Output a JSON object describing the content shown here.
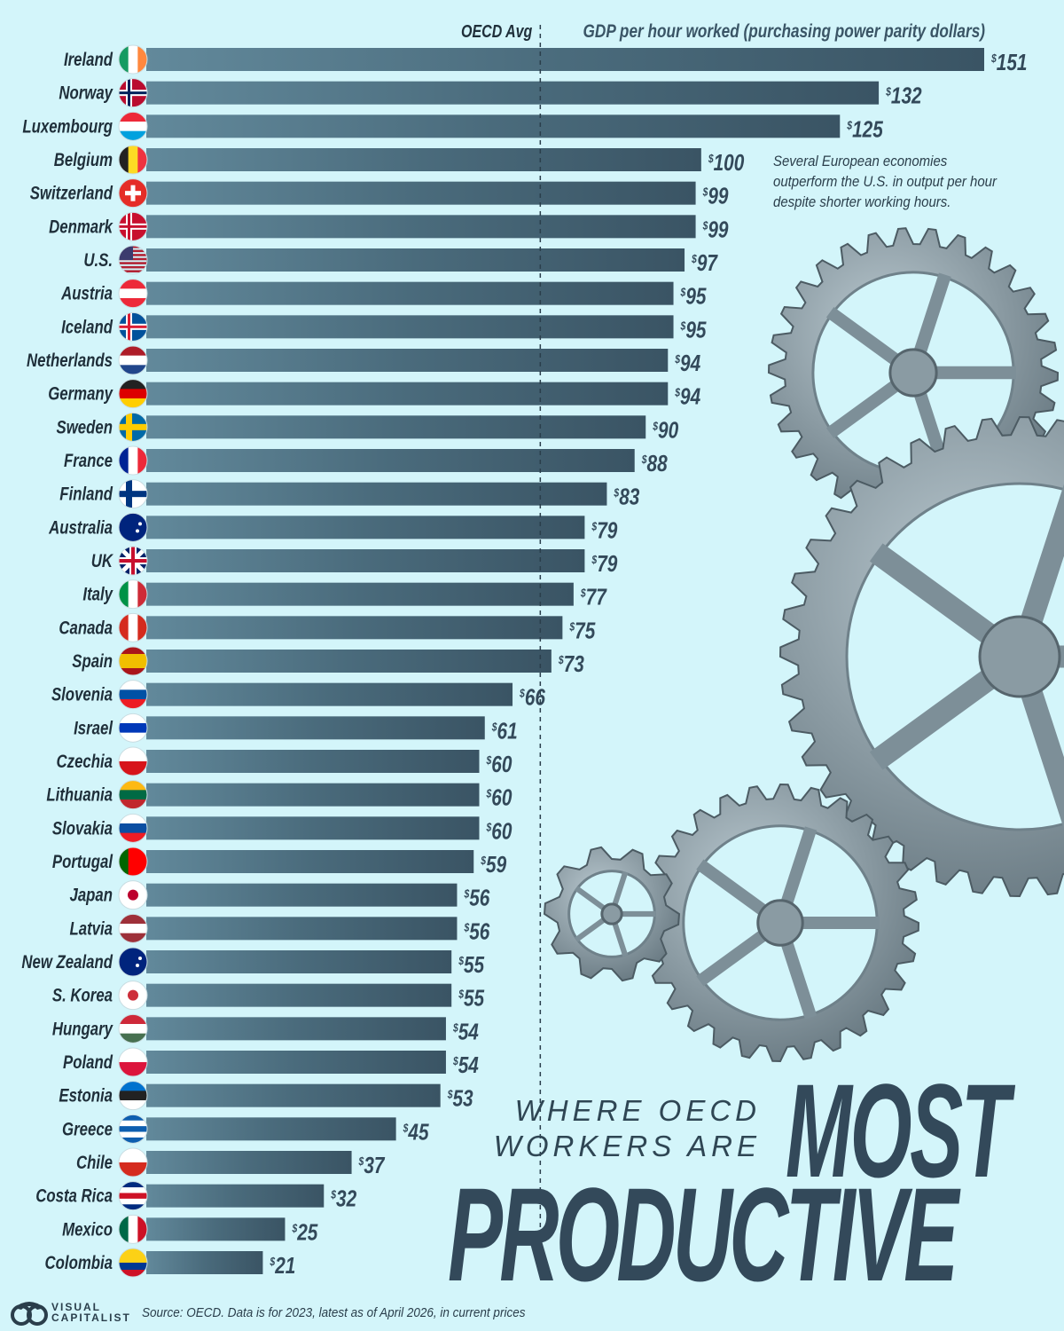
{
  "chart_data": {
    "type": "bar",
    "orientation": "horizontal",
    "title": "Where OECD Workers Are Most Productive",
    "xlabel": "GDP per hour worked (purchasing power parity dollars)",
    "value_prefix": "$",
    "xlim": [
      0,
      151
    ],
    "reference_line": {
      "label": "OECD Avg",
      "value": 71,
      "style": "dashed"
    },
    "categories": [
      "Ireland",
      "Norway",
      "Luxembourg",
      "Belgium",
      "Switzerland",
      "Denmark",
      "U.S.",
      "Austria",
      "Iceland",
      "Netherlands",
      "Germany",
      "Sweden",
      "France",
      "Finland",
      "Australia",
      "UK",
      "Italy",
      "Canada",
      "Spain",
      "Slovenia",
      "Israel",
      "Czechia",
      "Lithuania",
      "Slovakia",
      "Portugal",
      "Japan",
      "Latvia",
      "New Zealand",
      "S. Korea",
      "Hungary",
      "Poland",
      "Estonia",
      "Greece",
      "Chile",
      "Costa Rica",
      "Mexico",
      "Colombia"
    ],
    "values": [
      151,
      132,
      125,
      100,
      99,
      99,
      97,
      95,
      95,
      94,
      94,
      90,
      88,
      83,
      79,
      79,
      77,
      75,
      73,
      66,
      61,
      60,
      60,
      60,
      59,
      56,
      56,
      55,
      55,
      54,
      54,
      53,
      45,
      37,
      32,
      25,
      21
    ],
    "value_labels": [
      "151",
      "132",
      "125",
      "100",
      "99",
      "99",
      "97",
      "95",
      "95",
      "94",
      "94",
      "90",
      "88",
      "83",
      "79",
      "79",
      "77",
      "75",
      "73",
      "66",
      "61",
      "60",
      "60",
      "60",
      "59",
      "56",
      "56",
      "55",
      "55",
      "54",
      "54",
      "53",
      "45",
      "37",
      "32",
      "25",
      "21"
    ],
    "grid": false,
    "legend": "none"
  },
  "flags": [
    {
      "dir": "v",
      "colors": [
        "#169b62",
        "#ffffff",
        "#ff883e"
      ]
    },
    {
      "dir": "cross",
      "colors": [
        "#ba0c2f",
        "#ffffff",
        "#00205b"
      ]
    },
    {
      "dir": "h",
      "colors": [
        "#ed2939",
        "#ffffff",
        "#00a1de"
      ]
    },
    {
      "dir": "v",
      "colors": [
        "#222222",
        "#fdda24",
        "#ef3340"
      ]
    },
    {
      "dir": "swiss",
      "colors": [
        "#e52d27",
        "#ffffff"
      ]
    },
    {
      "dir": "cross",
      "colors": [
        "#c8102e",
        "#ffffff",
        "#c8102e"
      ]
    },
    {
      "dir": "us",
      "colors": [
        "#b22234",
        "#ffffff",
        "#3c3b6e"
      ]
    },
    {
      "dir": "h",
      "colors": [
        "#ed2939",
        "#ffffff",
        "#ed2939"
      ]
    },
    {
      "dir": "cross",
      "colors": [
        "#02529c",
        "#ffffff",
        "#dc1e35"
      ]
    },
    {
      "dir": "h",
      "colors": [
        "#ae1c28",
        "#ffffff",
        "#21468b"
      ]
    },
    {
      "dir": "h",
      "colors": [
        "#222222",
        "#dd0000",
        "#ffce00"
      ]
    },
    {
      "dir": "cross",
      "colors": [
        "#006aa7",
        "#fecc00",
        "#fecc00"
      ]
    },
    {
      "dir": "v",
      "colors": [
        "#002395",
        "#ffffff",
        "#ed2939"
      ]
    },
    {
      "dir": "cross",
      "colors": [
        "#ffffff",
        "#003580",
        "#003580"
      ]
    },
    {
      "dir": "solid",
      "colors": [
        "#00247d"
      ]
    },
    {
      "dir": "uk",
      "colors": [
        "#012169",
        "#ffffff",
        "#c8102e"
      ]
    },
    {
      "dir": "v",
      "colors": [
        "#009246",
        "#ffffff",
        "#ce2b37"
      ]
    },
    {
      "dir": "v",
      "colors": [
        "#d52b1e",
        "#ffffff",
        "#d52b1e"
      ]
    },
    {
      "dir": "h",
      "colors": [
        "#aa151b",
        "#f1bf00",
        "#f1bf00",
        "#aa151b"
      ]
    },
    {
      "dir": "h",
      "colors": [
        "#ffffff",
        "#0051a5",
        "#ed1c24"
      ]
    },
    {
      "dir": "h",
      "colors": [
        "#ffffff",
        "#0038b8",
        "#ffffff"
      ]
    },
    {
      "dir": "h",
      "colors": [
        "#ffffff",
        "#d7141a"
      ]
    },
    {
      "dir": "h",
      "colors": [
        "#fdb913",
        "#006a44",
        "#c1272d"
      ]
    },
    {
      "dir": "h",
      "colors": [
        "#ffffff",
        "#0b4ea2",
        "#ee1c25"
      ]
    },
    {
      "dir": "v",
      "colors": [
        "#006600",
        "#ff0000",
        "#ff0000"
      ]
    },
    {
      "dir": "dot",
      "colors": [
        "#ffffff",
        "#bc002d"
      ]
    },
    {
      "dir": "h",
      "colors": [
        "#9e3039",
        "#ffffff",
        "#9e3039"
      ]
    },
    {
      "dir": "solid",
      "colors": [
        "#00247d"
      ]
    },
    {
      "dir": "dot",
      "colors": [
        "#ffffff",
        "#cd2e3a"
      ]
    },
    {
      "dir": "h",
      "colors": [
        "#ce2939",
        "#ffffff",
        "#477050"
      ]
    },
    {
      "dir": "h",
      "colors": [
        "#ffffff",
        "#dc143c"
      ]
    },
    {
      "dir": "h",
      "colors": [
        "#0072ce",
        "#222222",
        "#ffffff"
      ]
    },
    {
      "dir": "h",
      "colors": [
        "#0d5eaf",
        "#ffffff",
        "#0d5eaf",
        "#ffffff",
        "#0d5eaf"
      ]
    },
    {
      "dir": "h",
      "colors": [
        "#ffffff",
        "#d52b1e"
      ]
    },
    {
      "dir": "h",
      "colors": [
        "#002b7f",
        "#ffffff",
        "#ce1126",
        "#ffffff",
        "#002b7f"
      ]
    },
    {
      "dir": "v",
      "colors": [
        "#006847",
        "#ffffff",
        "#ce1126"
      ]
    },
    {
      "dir": "h",
      "colors": [
        "#fcd116",
        "#fcd116",
        "#003893",
        "#ce1126"
      ]
    }
  ],
  "colors": {
    "background": "#d3f5fa",
    "bar_dark": "#3b5666",
    "bar_light": "#5e8799",
    "text": "#2a3e4b"
  },
  "headline": {
    "line1": "WHERE OECD",
    "line2": "WORKERS ARE",
    "big1": "MOST",
    "big2": "PRODUCTIVE"
  },
  "note": "Several European economies outperform the U.S. in output per hour despite shorter working hours.",
  "footer": {
    "logo_line1": "VISUAL",
    "logo_line2": "CAPITALIST",
    "source": "Source: OECD. Data is for 2023, latest as of April 2026, in current prices"
  }
}
